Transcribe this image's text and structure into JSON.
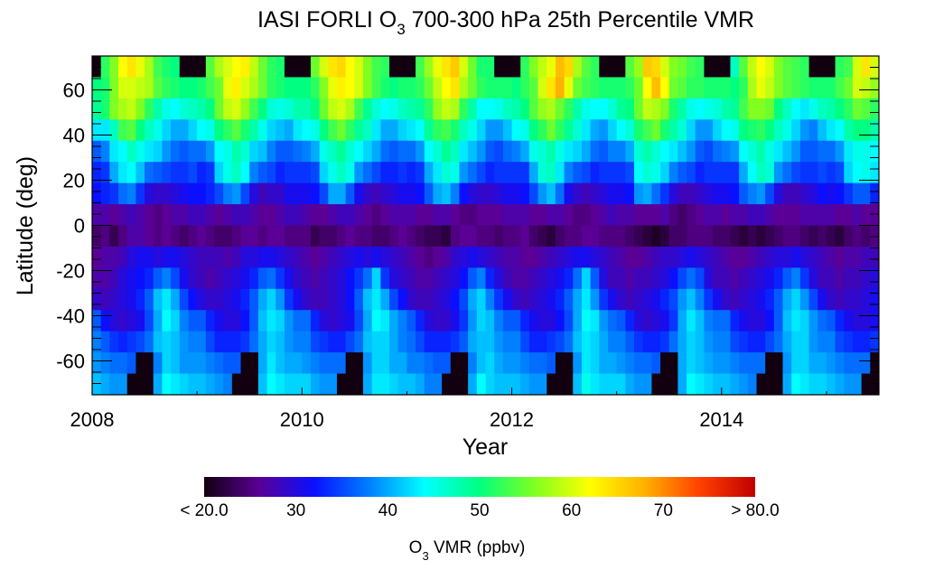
{
  "chart_data": {
    "type": "heatmap",
    "title_prefix": "IASI FORLI O",
    "title_sub": "3",
    "title_suffix": " 700-300 hPa 25th Percentile VMR",
    "xlabel": "Year",
    "ylabel": "Latitude (deg)",
    "xlim": [
      2008.0,
      2015.5
    ],
    "ylim": [
      -75,
      75
    ],
    "x_ticks": [
      "2008",
      "2010",
      "2012",
      "2014"
    ],
    "x_tick_values": [
      2008,
      2010,
      2012,
      2014
    ],
    "y_ticks": [
      "60",
      "40",
      "20",
      "0",
      "-20",
      "-40",
      "-60"
    ],
    "y_tick_values": [
      60,
      40,
      20,
      0,
      -20,
      -40,
      -60
    ],
    "x_start": "2008-01",
    "x_step": "monthly",
    "n_columns": 90,
    "rows_order": "north-to-south (75N to 75S, 16 bands)",
    "missing_color": "#120010",
    "values": [
      [
        null,
        52,
        56,
        62,
        64,
        61,
        58,
        53,
        51,
        50,
        null,
        null,
        null,
        54,
        58,
        60,
        62,
        63,
        59,
        55,
        52,
        51,
        null,
        null,
        null,
        55,
        60,
        64,
        65,
        62,
        60,
        56,
        53,
        52,
        null,
        null,
        null,
        53,
        57,
        61,
        64,
        66,
        60,
        55,
        51,
        51,
        null,
        null,
        null,
        52,
        56,
        59,
        61,
        67,
        65,
        58,
        54,
        52,
        null,
        null,
        null,
        54,
        57,
        66,
        65,
        60,
        56,
        55,
        53,
        52,
        null,
        null,
        null,
        47,
        54,
        59,
        62,
        60,
        56,
        54,
        53,
        52,
        null,
        null,
        null,
        52,
        53,
        60,
        64,
        60
      ],
      [
        50,
        51,
        56,
        60,
        60,
        59,
        58,
        54,
        52,
        51,
        50,
        50,
        51,
        53,
        55,
        61,
        63,
        60,
        58,
        55,
        52,
        51,
        50,
        50,
        50,
        52,
        56,
        61,
        63,
        62,
        60,
        56,
        53,
        51,
        50,
        51,
        51,
        52,
        55,
        59,
        62,
        64,
        58,
        55,
        52,
        51,
        51,
        51,
        50,
        52,
        54,
        60,
        64,
        68,
        61,
        55,
        53,
        52,
        51,
        51,
        51,
        52,
        55,
        62,
        67,
        62,
        55,
        54,
        52,
        52,
        51,
        51,
        51,
        50,
        52,
        58,
        61,
        59,
        56,
        54,
        53,
        52,
        51,
        51,
        51,
        53,
        55,
        60,
        59,
        57
      ],
      [
        49,
        51,
        56,
        58,
        59,
        56,
        52,
        48,
        45,
        44,
        46,
        47,
        48,
        50,
        55,
        59,
        60,
        57,
        53,
        50,
        46,
        45,
        46,
        48,
        48,
        50,
        55,
        59,
        60,
        58,
        53,
        49,
        46,
        44,
        45,
        47,
        48,
        49,
        52,
        57,
        59,
        58,
        52,
        48,
        44,
        44,
        45,
        47,
        48,
        50,
        54,
        57,
        58,
        55,
        52,
        48,
        45,
        44,
        44,
        46,
        49,
        50,
        55,
        59,
        58,
        56,
        51,
        48,
        45,
        44,
        45,
        46,
        48,
        49,
        53,
        56,
        56,
        55,
        50,
        47,
        44,
        43,
        45,
        47,
        48,
        50,
        52,
        55,
        54,
        52
      ],
      [
        43,
        43,
        47,
        53,
        54,
        50,
        47,
        45,
        42,
        40,
        40,
        42,
        44,
        45,
        50,
        52,
        54,
        51,
        48,
        45,
        42,
        41,
        40,
        43,
        44,
        45,
        50,
        53,
        55,
        52,
        49,
        47,
        43,
        40,
        40,
        42,
        43,
        44,
        49,
        52,
        53,
        51,
        47,
        45,
        42,
        39,
        39,
        41,
        44,
        45,
        50,
        52,
        55,
        52,
        49,
        46,
        43,
        40,
        39,
        42,
        44,
        46,
        51,
        53,
        55,
        51,
        48,
        46,
        42,
        39,
        39,
        42,
        44,
        45,
        50,
        51,
        52,
        50,
        47,
        45,
        42,
        39,
        38,
        41,
        43,
        44,
        48,
        50,
        50,
        48
      ],
      [
        36,
        38,
        43,
        44,
        47,
        45,
        43,
        42,
        39,
        37,
        36,
        37,
        37,
        39,
        44,
        45,
        48,
        46,
        42,
        41,
        38,
        36,
        36,
        37,
        38,
        40,
        45,
        47,
        49,
        46,
        44,
        42,
        40,
        37,
        36,
        37,
        37,
        39,
        44,
        46,
        49,
        47,
        43,
        41,
        39,
        36,
        35,
        37,
        38,
        40,
        45,
        46,
        48,
        45,
        43,
        42,
        40,
        37,
        36,
        38,
        38,
        40,
        46,
        48,
        46,
        44,
        43,
        41,
        39,
        36,
        35,
        37,
        38,
        39,
        44,
        46,
        48,
        45,
        43,
        41,
        39,
        36,
        36,
        37,
        37,
        39,
        43,
        45,
        45,
        44
      ],
      [
        33,
        34,
        40,
        43,
        44,
        41,
        37,
        36,
        35,
        34,
        34,
        35,
        33,
        34,
        42,
        45,
        47,
        44,
        38,
        36,
        35,
        33,
        34,
        34,
        34,
        35,
        42,
        45,
        47,
        45,
        39,
        37,
        35,
        33,
        33,
        34,
        33,
        34,
        40,
        43,
        46,
        45,
        39,
        37,
        35,
        33,
        34,
        34,
        34,
        34,
        40,
        46,
        47,
        43,
        38,
        36,
        35,
        33,
        34,
        34,
        34,
        35,
        44,
        46,
        45,
        42,
        38,
        36,
        35,
        33,
        34,
        34,
        34,
        34,
        40,
        44,
        47,
        46,
        39,
        37,
        35,
        34,
        34,
        35,
        34,
        35,
        42,
        44,
        45,
        43
      ],
      [
        32,
        33,
        34,
        37,
        38,
        34,
        30,
        29,
        29,
        30,
        31,
        32,
        32,
        33,
        35,
        38,
        39,
        35,
        30,
        28,
        29,
        29,
        31,
        31,
        31,
        32,
        35,
        40,
        40,
        36,
        31,
        29,
        28,
        29,
        30,
        31,
        31,
        32,
        36,
        40,
        41,
        38,
        32,
        30,
        29,
        29,
        30,
        31,
        31,
        32,
        35,
        39,
        41,
        37,
        31,
        29,
        28,
        29,
        30,
        31,
        31,
        32,
        39,
        40,
        37,
        34,
        30,
        28,
        28,
        29,
        30,
        31,
        31,
        32,
        36,
        38,
        39,
        35,
        30,
        28,
        28,
        29,
        30,
        32,
        31,
        32,
        34,
        36,
        36,
        33
      ],
      [
        27,
        27,
        26,
        27,
        28,
        27,
        26,
        25,
        26,
        27,
        27,
        28,
        28,
        27,
        26,
        27,
        28,
        28,
        27,
        26,
        26,
        27,
        28,
        28,
        27,
        26,
        26,
        27,
        28,
        28,
        27,
        26,
        25,
        26,
        27,
        27,
        27,
        26,
        26,
        27,
        27,
        26,
        25,
        25,
        26,
        26,
        26,
        27,
        27,
        27,
        26,
        26,
        27,
        27,
        26,
        25,
        25,
        26,
        27,
        28,
        27,
        27,
        26,
        26,
        26,
        27,
        25,
        24,
        25,
        26,
        27,
        27,
        26,
        27,
        27,
        28,
        28,
        27,
        26,
        26,
        26,
        27,
        27,
        27,
        27,
        26,
        26,
        27,
        26,
        26
      ],
      [
        24,
        25,
        23,
        25,
        27,
        27,
        26,
        25,
        26,
        25,
        24,
        25,
        26,
        25,
        24,
        24,
        25,
        26,
        26,
        25,
        26,
        26,
        25,
        25,
        25,
        23,
        24,
        24,
        25,
        26,
        25,
        25,
        24,
        24,
        25,
        26,
        25,
        24,
        23,
        23,
        22,
        25,
        26,
        26,
        25,
        25,
        24,
        25,
        25,
        26,
        24,
        23,
        22,
        24,
        25,
        25,
        26,
        26,
        25,
        25,
        25,
        24,
        23,
        22,
        21,
        22,
        24,
        24,
        25,
        25,
        25,
        24,
        24,
        23,
        22,
        23,
        22,
        23,
        24,
        25,
        25,
        24,
        23,
        24,
        23,
        22,
        24,
        25,
        24,
        25
      ],
      [
        26,
        27,
        27,
        28,
        30,
        31,
        31,
        30,
        31,
        31,
        30,
        29,
        28,
        28,
        28,
        27,
        28,
        30,
        30,
        31,
        31,
        30,
        29,
        28,
        27,
        26,
        27,
        28,
        29,
        30,
        31,
        30,
        31,
        30,
        29,
        28,
        27,
        26,
        25,
        26,
        27,
        29,
        30,
        31,
        30,
        29,
        28,
        27,
        27,
        26,
        26,
        27,
        28,
        29,
        30,
        31,
        31,
        30,
        29,
        28,
        27,
        26,
        26,
        27,
        28,
        29,
        29,
        30,
        31,
        30,
        29,
        28,
        27,
        26,
        26,
        27,
        28,
        29,
        30,
        30,
        31,
        30,
        29,
        28,
        27,
        26,
        27,
        27,
        28,
        28
      ],
      [
        27,
        27,
        28,
        30,
        31,
        32,
        33,
        36,
        38,
        35,
        31,
        29,
        28,
        27,
        28,
        29,
        30,
        31,
        33,
        36,
        37,
        34,
        31,
        29,
        28,
        27,
        28,
        29,
        30,
        32,
        34,
        37,
        42,
        34,
        30,
        29,
        28,
        27,
        27,
        28,
        29,
        30,
        32,
        36,
        38,
        33,
        30,
        28,
        27,
        27,
        28,
        29,
        30,
        31,
        33,
        37,
        42,
        36,
        30,
        28,
        28,
        27,
        28,
        28,
        29,
        30,
        32,
        35,
        37,
        35,
        30,
        28,
        28,
        27,
        28,
        29,
        30,
        31,
        33,
        36,
        38,
        34,
        30,
        28,
        28,
        27,
        28,
        28,
        29,
        30
      ],
      [
        29,
        28,
        29,
        30,
        31,
        33,
        36,
        41,
        43,
        40,
        35,
        32,
        30,
        29,
        29,
        30,
        31,
        33,
        36,
        40,
        42,
        39,
        34,
        31,
        29,
        28,
        28,
        29,
        30,
        32,
        36,
        41,
        43,
        40,
        35,
        32,
        29,
        28,
        28,
        29,
        30,
        32,
        35,
        40,
        42,
        38,
        34,
        31,
        29,
        28,
        29,
        30,
        31,
        33,
        36,
        40,
        43,
        39,
        34,
        31,
        29,
        28,
        29,
        30,
        31,
        33,
        35,
        39,
        41,
        38,
        34,
        31,
        29,
        28,
        29,
        30,
        31,
        33,
        36,
        40,
        42,
        39,
        35,
        31,
        29,
        28,
        29,
        29,
        30,
        31
      ],
      [
        36,
        32,
        30,
        29,
        30,
        31,
        35,
        40,
        44,
        42,
        38,
        36,
        36,
        33,
        31,
        30,
        30,
        32,
        36,
        41,
        43,
        42,
        39,
        37,
        37,
        33,
        30,
        29,
        30,
        31,
        35,
        40,
        44,
        43,
        40,
        38,
        36,
        33,
        30,
        29,
        29,
        31,
        34,
        39,
        42,
        41,
        38,
        36,
        36,
        33,
        31,
        30,
        30,
        32,
        35,
        40,
        44,
        43,
        39,
        37,
        36,
        33,
        30,
        29,
        30,
        31,
        34,
        40,
        43,
        41,
        38,
        37,
        37,
        33,
        31,
        30,
        30,
        32,
        36,
        41,
        43,
        42,
        39,
        37,
        36,
        33,
        31,
        30,
        30,
        31
      ],
      [
        38,
        36,
        34,
        33,
        34,
        35,
        37,
        41,
        42,
        41,
        39,
        38,
        38,
        35,
        33,
        33,
        33,
        34,
        37,
        40,
        42,
        41,
        39,
        38,
        38,
        35,
        34,
        33,
        33,
        35,
        37,
        41,
        42,
        42,
        40,
        38,
        37,
        35,
        33,
        33,
        33,
        34,
        36,
        40,
        41,
        41,
        39,
        38,
        38,
        35,
        33,
        33,
        34,
        35,
        37,
        41,
        43,
        42,
        40,
        38,
        38,
        36,
        34,
        33,
        33,
        34,
        37,
        40,
        42,
        41,
        39,
        38,
        38,
        35,
        34,
        33,
        33,
        35,
        37,
        40,
        42,
        42,
        39,
        38,
        38,
        35,
        34,
        33,
        33,
        34
      ],
      [
        39,
        38,
        37,
        37,
        36,
        null,
        null,
        38,
        42,
        41,
        39,
        39,
        39,
        38,
        37,
        36,
        36,
        null,
        null,
        40,
        43,
        41,
        40,
        40,
        39,
        38,
        37,
        37,
        37,
        null,
        null,
        39,
        42,
        42,
        40,
        40,
        38,
        38,
        37,
        36,
        36,
        null,
        null,
        38,
        41,
        42,
        40,
        39,
        39,
        38,
        37,
        37,
        36,
        null,
        null,
        39,
        43,
        42,
        40,
        40,
        39,
        38,
        37,
        37,
        36,
        null,
        null,
        40,
        42,
        41,
        40,
        39,
        39,
        38,
        37,
        37,
        37,
        null,
        null,
        39,
        42,
        42,
        40,
        40,
        39,
        38,
        37,
        37,
        37,
        null
      ],
      [
        41,
        40,
        39,
        39,
        null,
        null,
        null,
        40,
        44,
        43,
        42,
        41,
        41,
        40,
        39,
        38,
        null,
        null,
        null,
        41,
        44,
        43,
        42,
        42,
        42,
        40,
        39,
        39,
        null,
        null,
        null,
        40,
        43,
        43,
        42,
        41,
        41,
        40,
        38,
        38,
        null,
        null,
        null,
        40,
        44,
        42,
        41,
        41,
        41,
        40,
        39,
        39,
        null,
        null,
        null,
        41,
        45,
        43,
        42,
        42,
        42,
        40,
        39,
        39,
        null,
        null,
        null,
        40,
        44,
        43,
        42,
        41,
        41,
        40,
        39,
        38,
        null,
        null,
        null,
        40,
        44,
        43,
        42,
        42,
        41,
        40,
        39,
        39,
        null,
        null
      ]
    ],
    "colorbar": {
      "range": [
        20,
        80
      ],
      "tick_labels": [
        "< 20.0",
        "30",
        "40",
        "50",
        "60",
        "70",
        "> 80.0"
      ],
      "tick_values": [
        20,
        30,
        40,
        50,
        60,
        70,
        80
      ],
      "label_prefix": "O",
      "label_sub": "3",
      "label_suffix": " VMR (ppbv)",
      "colors": [
        "#120010",
        "#5a0096",
        "#0a10ff",
        "#0080ff",
        "#00ffff",
        "#00ff80",
        "#80ff20",
        "#ffff00",
        "#ffb000",
        "#ff4000",
        "#c00000"
      ]
    }
  }
}
